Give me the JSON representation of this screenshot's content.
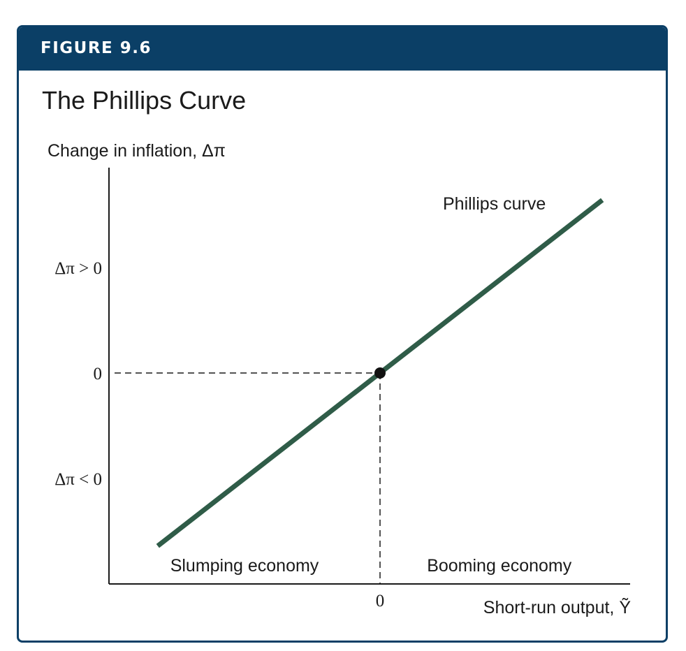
{
  "figure": {
    "label": "FIGURE 9.6",
    "title": "The Phillips Curve"
  },
  "colors": {
    "header": "#0b3f66",
    "curve": "#2f5c48",
    "axis": "#1a1a1a"
  },
  "chart_data": {
    "type": "line",
    "title": "The Phillips Curve",
    "ylabel": "Change in inflation, Δπ",
    "xlabel": "Short-run output, Ỹ",
    "xlim": [
      -1,
      1
    ],
    "ylim": [
      -1,
      1
    ],
    "grid": false,
    "y_ticks": [
      {
        "value": 0.5,
        "label": "Δπ > 0"
      },
      {
        "value": 0,
        "label": "0"
      },
      {
        "value": -0.5,
        "label": "Δπ < 0"
      }
    ],
    "x_ticks": [
      {
        "value": 0,
        "label": "0"
      }
    ],
    "series": [
      {
        "name": "Phillips curve",
        "x": [
          -0.82,
          0,
          0.82
        ],
        "y": [
          -0.82,
          0,
          0.82
        ]
      }
    ],
    "point": {
      "x": 0,
      "y": 0
    },
    "annotations": [
      {
        "text": "Slumping economy",
        "x": -0.5,
        "y": -0.91
      },
      {
        "text": "Booming economy",
        "x": 0.44,
        "y": -0.91
      }
    ]
  }
}
